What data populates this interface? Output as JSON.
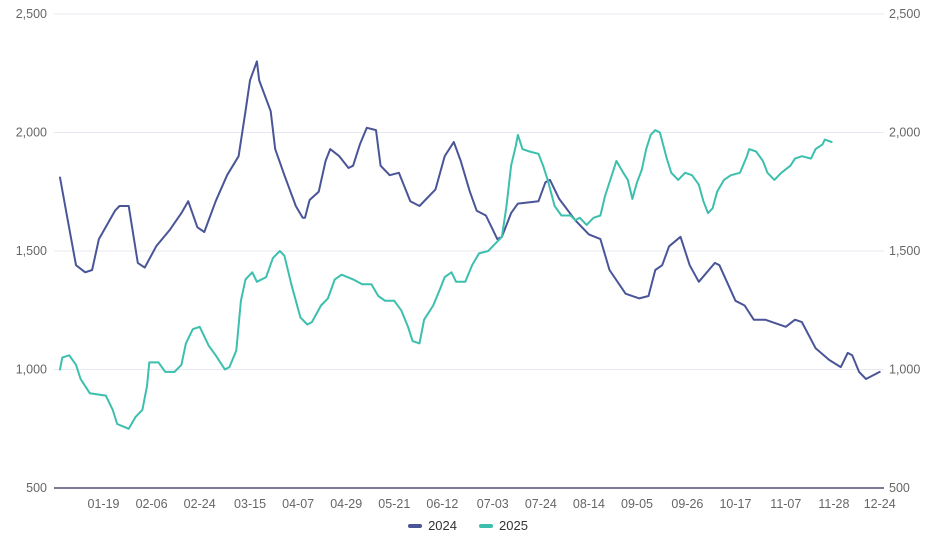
{
  "chart_data": {
    "type": "line",
    "title": "",
    "xlabel": "",
    "ylabel": "",
    "ylim": [
      500,
      2500
    ],
    "yticks": [
      500,
      1000,
      1500,
      2000,
      2500
    ],
    "ytick_labels": [
      "500",
      "1,000",
      "1,500",
      "2,000",
      "2,500"
    ],
    "xlim": [
      0,
      359
    ],
    "xticks": [
      {
        "x": 19,
        "label": "01-19"
      },
      {
        "x": 40,
        "label": "02-06"
      },
      {
        "x": 61,
        "label": "02-24"
      },
      {
        "x": 83,
        "label": "03-15"
      },
      {
        "x": 104,
        "label": "04-07"
      },
      {
        "x": 125,
        "label": "04-29"
      },
      {
        "x": 146,
        "label": "05-21"
      },
      {
        "x": 167,
        "label": "06-12"
      },
      {
        "x": 189,
        "label": "07-03"
      },
      {
        "x": 210,
        "label": "07-24"
      },
      {
        "x": 231,
        "label": "08-14"
      },
      {
        "x": 252,
        "label": "09-05"
      },
      {
        "x": 274,
        "label": "09-26"
      },
      {
        "x": 295,
        "label": "10-17"
      },
      {
        "x": 317,
        "label": "11-07"
      },
      {
        "x": 338,
        "label": "11-28"
      },
      {
        "x": 358,
        "label": "12-24"
      }
    ],
    "grid": true,
    "legend_position": "bottom-center",
    "series": [
      {
        "name": "2024",
        "color": "#4a5598",
        "points": [
          [
            0,
            1810
          ],
          [
            3,
            1650
          ],
          [
            7,
            1440
          ],
          [
            11,
            1410
          ],
          [
            14,
            1420
          ],
          [
            17,
            1550
          ],
          [
            24,
            1670
          ],
          [
            26,
            1690
          ],
          [
            30,
            1690
          ],
          [
            34,
            1450
          ],
          [
            37,
            1430
          ],
          [
            42,
            1520
          ],
          [
            48,
            1590
          ],
          [
            53,
            1660
          ],
          [
            56,
            1710
          ],
          [
            60,
            1600
          ],
          [
            63,
            1580
          ],
          [
            68,
            1710
          ],
          [
            73,
            1820
          ],
          [
            78,
            1900
          ],
          [
            81,
            2090
          ],
          [
            83,
            2220
          ],
          [
            86,
            2300
          ],
          [
            87,
            2220
          ],
          [
            92,
            2090
          ],
          [
            94,
            1930
          ],
          [
            98,
            1820
          ],
          [
            103,
            1690
          ],
          [
            106,
            1640
          ],
          [
            107,
            1640
          ],
          [
            109,
            1715
          ],
          [
            113,
            1750
          ],
          [
            116,
            1880
          ],
          [
            118,
            1930
          ],
          [
            122,
            1900
          ],
          [
            126,
            1850
          ],
          [
            128,
            1860
          ],
          [
            131,
            1950
          ],
          [
            134,
            2020
          ],
          [
            138,
            2010
          ],
          [
            140,
            1860
          ],
          [
            144,
            1820
          ],
          [
            148,
            1830
          ],
          [
            153,
            1710
          ],
          [
            157,
            1690
          ],
          [
            164,
            1760
          ],
          [
            168,
            1900
          ],
          [
            172,
            1960
          ],
          [
            175,
            1880
          ],
          [
            179,
            1750
          ],
          [
            182,
            1670
          ],
          [
            186,
            1650
          ],
          [
            189,
            1590
          ],
          [
            191,
            1550
          ],
          [
            193,
            1560
          ],
          [
            197,
            1660
          ],
          [
            200,
            1700
          ],
          [
            209,
            1710
          ],
          [
            212,
            1790
          ],
          [
            214,
            1800
          ],
          [
            218,
            1720
          ],
          [
            225,
            1630
          ],
          [
            231,
            1570
          ],
          [
            236,
            1550
          ],
          [
            240,
            1420
          ],
          [
            247,
            1320
          ],
          [
            253,
            1300
          ],
          [
            257,
            1310
          ],
          [
            260,
            1420
          ],
          [
            263,
            1440
          ],
          [
            266,
            1520
          ],
          [
            271,
            1560
          ],
          [
            275,
            1440
          ],
          [
            279,
            1370
          ],
          [
            286,
            1450
          ],
          [
            288,
            1440
          ],
          [
            295,
            1290
          ],
          [
            299,
            1270
          ],
          [
            303,
            1210
          ],
          [
            308,
            1210
          ],
          [
            317,
            1180
          ],
          [
            321,
            1210
          ],
          [
            324,
            1200
          ],
          [
            330,
            1090
          ],
          [
            336,
            1040
          ],
          [
            341,
            1010
          ],
          [
            344,
            1070
          ],
          [
            346,
            1060
          ],
          [
            349,
            990
          ],
          [
            352,
            960
          ],
          [
            358,
            990
          ]
        ]
      },
      {
        "name": "2025",
        "color": "#3dbfae",
        "points": [
          [
            0,
            1000
          ],
          [
            1,
            1050
          ],
          [
            4,
            1060
          ],
          [
            7,
            1020
          ],
          [
            9,
            960
          ],
          [
            13,
            900
          ],
          [
            20,
            890
          ],
          [
            23,
            830
          ],
          [
            25,
            770
          ],
          [
            30,
            750
          ],
          [
            33,
            800
          ],
          [
            36,
            830
          ],
          [
            38,
            930
          ],
          [
            39,
            1030
          ],
          [
            43,
            1030
          ],
          [
            46,
            990
          ],
          [
            50,
            990
          ],
          [
            53,
            1020
          ],
          [
            55,
            1110
          ],
          [
            58,
            1170
          ],
          [
            61,
            1180
          ],
          [
            65,
            1100
          ],
          [
            68,
            1060
          ],
          [
            72,
            1000
          ],
          [
            74,
            1010
          ],
          [
            77,
            1080
          ],
          [
            79,
            1290
          ],
          [
            81,
            1380
          ],
          [
            84,
            1410
          ],
          [
            86,
            1370
          ],
          [
            90,
            1390
          ],
          [
            93,
            1470
          ],
          [
            96,
            1500
          ],
          [
            98,
            1480
          ],
          [
            101,
            1360
          ],
          [
            105,
            1220
          ],
          [
            108,
            1190
          ],
          [
            110,
            1200
          ],
          [
            114,
            1270
          ],
          [
            117,
            1300
          ],
          [
            120,
            1380
          ],
          [
            123,
            1400
          ],
          [
            128,
            1380
          ],
          [
            132,
            1360
          ],
          [
            136,
            1360
          ],
          [
            139,
            1310
          ],
          [
            142,
            1290
          ],
          [
            146,
            1290
          ],
          [
            149,
            1250
          ],
          [
            152,
            1180
          ],
          [
            154,
            1120
          ],
          [
            157,
            1110
          ],
          [
            159,
            1210
          ],
          [
            163,
            1270
          ],
          [
            166,
            1340
          ],
          [
            168,
            1390
          ],
          [
            171,
            1410
          ],
          [
            173,
            1370
          ],
          [
            177,
            1370
          ],
          [
            180,
            1440
          ],
          [
            183,
            1490
          ],
          [
            187,
            1500
          ],
          [
            190,
            1530
          ],
          [
            193,
            1560
          ],
          [
            195,
            1690
          ],
          [
            197,
            1860
          ],
          [
            199,
            1940
          ],
          [
            200,
            1990
          ],
          [
            202,
            1930
          ],
          [
            205,
            1920
          ],
          [
            209,
            1910
          ],
          [
            211,
            1860
          ],
          [
            213,
            1800
          ],
          [
            216,
            1690
          ],
          [
            219,
            1650
          ],
          [
            223,
            1650
          ],
          [
            225,
            1630
          ],
          [
            227,
            1640
          ],
          [
            230,
            1610
          ],
          [
            233,
            1640
          ],
          [
            236,
            1650
          ],
          [
            238,
            1730
          ],
          [
            241,
            1820
          ],
          [
            243,
            1880
          ],
          [
            246,
            1830
          ],
          [
            248,
            1800
          ],
          [
            250,
            1720
          ],
          [
            252,
            1790
          ],
          [
            254,
            1840
          ],
          [
            256,
            1930
          ],
          [
            258,
            1990
          ],
          [
            260,
            2010
          ],
          [
            262,
            2000
          ],
          [
            265,
            1890
          ],
          [
            267,
            1830
          ],
          [
            270,
            1800
          ],
          [
            273,
            1830
          ],
          [
            276,
            1820
          ],
          [
            279,
            1780
          ],
          [
            281,
            1710
          ],
          [
            283,
            1660
          ],
          [
            285,
            1680
          ],
          [
            287,
            1750
          ],
          [
            290,
            1800
          ],
          [
            293,
            1820
          ],
          [
            297,
            1830
          ],
          [
            300,
            1900
          ],
          [
            301,
            1930
          ],
          [
            304,
            1920
          ],
          [
            307,
            1880
          ],
          [
            309,
            1830
          ],
          [
            312,
            1800
          ],
          [
            315,
            1830
          ],
          [
            319,
            1860
          ],
          [
            321,
            1890
          ],
          [
            324,
            1900
          ],
          [
            328,
            1890
          ],
          [
            330,
            1930
          ],
          [
            333,
            1950
          ],
          [
            334,
            1970
          ],
          [
            337,
            1960
          ]
        ]
      }
    ]
  }
}
